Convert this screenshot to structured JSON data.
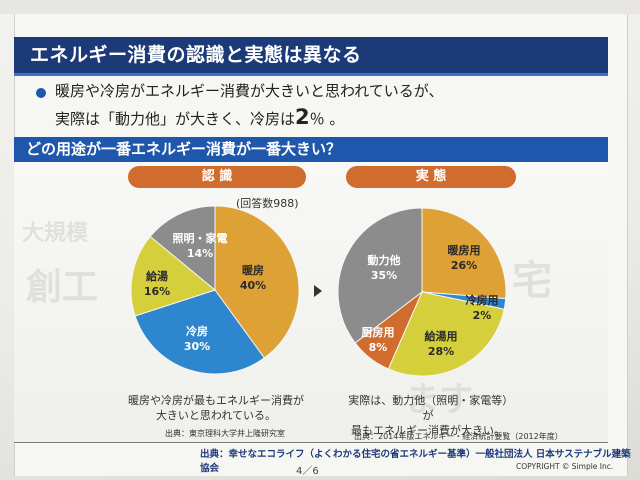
{
  "title": "エネルギー消費の認識と実態は異なる",
  "bullets": {
    "line1": "暖房や冷房がエネルギー消費が大きいと思われているが、",
    "line2_pre": "実際は「動力他」が大きく、冷房は",
    "line2_value": "2",
    "line2_post": "％ 。"
  },
  "question": "どの用途が一番エネルギー消費が一番大きい？",
  "chart_data": [
    {
      "type": "pie",
      "title": "認 識",
      "note": "(回答数988)",
      "labels": [
        "暖房",
        "冷房",
        "給湯",
        "照明・家電"
      ],
      "values": [
        40,
        30,
        16,
        14
      ],
      "value_labels": [
        "40%",
        "30%",
        "16%",
        "14%"
      ],
      "colors": [
        "#dea135",
        "#2e86cf",
        "#d6cf3c",
        "#8c8c8c"
      ]
    },
    {
      "type": "pie",
      "title": "実 態",
      "labels": [
        "暖房用",
        "冷房用",
        "給湯用",
        "厨房用",
        "動力他"
      ],
      "values": [
        26,
        2,
        28,
        8,
        35
      ],
      "value_labels": [
        "26%",
        "2%",
        "28%",
        "8%",
        "35%"
      ],
      "colors": [
        "#dea135",
        "#2e86cf",
        "#d6cf3c",
        "#cf6c2e",
        "#8c8c8c"
      ]
    }
  ],
  "notes": {
    "left_line1": "暖房や冷房が最もエネルギー消費が",
    "left_line2": "大きいと思われている。",
    "right_line1": "実際は、動力他（照明・家電等）が",
    "right_line2": "最もエネルギー消費が大きい。"
  },
  "sources": {
    "left": "出典：東京理科大学井上隆研究室",
    "right": "出典：2014年版エネルギー・経済統計要覧（2012年度）",
    "footer": "出典：幸せなエコライフ（よくわかる住宅の省エネルギー基準）一般社団法人 日本サステナブル建築協会"
  },
  "page": "4／6",
  "copyright": "COPYRIGHT © Simple Inc."
}
